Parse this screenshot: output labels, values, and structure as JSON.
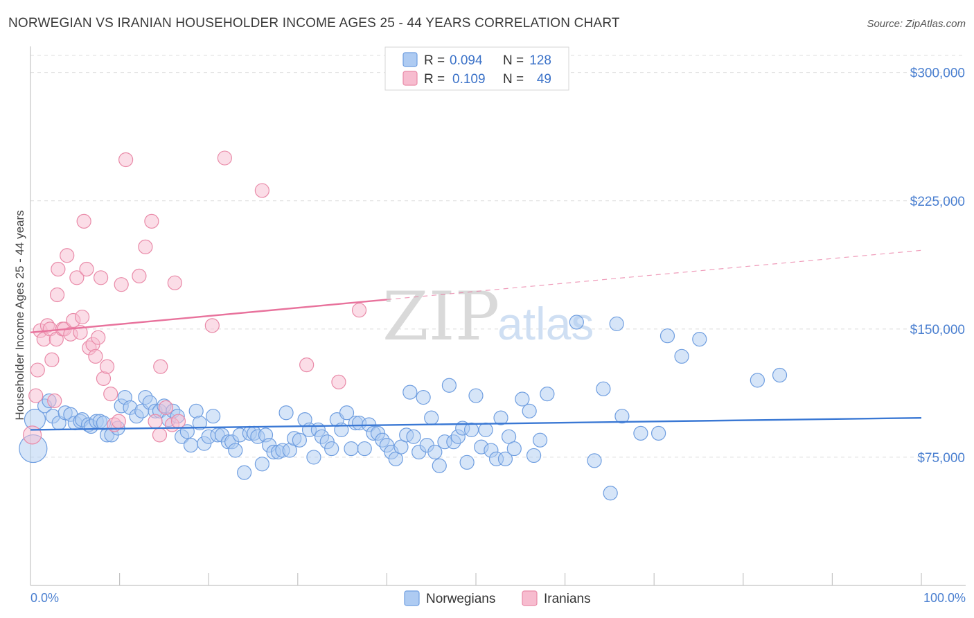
{
  "chart_data": {
    "type": "scatter",
    "title": "NORWEGIAN VS IRANIAN HOUSEHOLDER INCOME AGES 25 - 44 YEARS CORRELATION CHART",
    "source": "Source: ZipAtlas.com",
    "ylabel": "Householder Income Ages 25 - 44 years",
    "xlim": [
      0,
      100
    ],
    "ylim": [
      0,
      310000
    ],
    "x_tick_labels": {
      "min": "0.0%",
      "max": "100.0%"
    },
    "y_ticks": [
      {
        "value": 75000,
        "label": "$75,000"
      },
      {
        "value": 150000,
        "label": "$150,000"
      },
      {
        "value": 225000,
        "label": "$225,000"
      },
      {
        "value": 300000,
        "label": "$300,000"
      }
    ],
    "watermark": {
      "zip": "ZIP",
      "atlas": "atlas"
    },
    "legend": {
      "r_label": "R =",
      "n_label": "N =",
      "entries": [
        {
          "name": "Norwegians",
          "r": "0.094",
          "n": "128",
          "fill": "#aecbf2",
          "stroke": "#6f9ee0"
        },
        {
          "name": "Iranians",
          "r": "0.109",
          "n": "49",
          "fill": "#f7bccf",
          "stroke": "#e98aa8"
        }
      ]
    },
    "series": [
      {
        "name": "Norwegians",
        "color": "#3a78d4",
        "trend": {
          "x0": 0,
          "y0": 91000,
          "x1": 100,
          "y1": 98000,
          "solid_until": 100
        },
        "points": [
          [
            0.3,
            80000,
            2.0
          ],
          [
            0.5,
            97000,
            1.5
          ],
          [
            1.6,
            105000,
            1
          ],
          [
            2.1,
            108000,
            1
          ],
          [
            2.5,
            99000,
            1
          ],
          [
            3.2,
            95000,
            1
          ],
          [
            3.9,
            101000,
            1
          ],
          [
            4.5,
            100000,
            1
          ],
          [
            5,
            95000,
            1
          ],
          [
            5.6,
            96000,
            1
          ],
          [
            5.8,
            97000,
            1
          ],
          [
            6.5,
            94000,
            1
          ],
          [
            6.8,
            93000,
            1
          ],
          [
            7.4,
            96000,
            1
          ],
          [
            7.8,
            96000,
            1
          ],
          [
            8.2,
            95000,
            1
          ],
          [
            8.6,
            88000,
            1
          ],
          [
            9.1,
            88000,
            1
          ],
          [
            9.8,
            92000,
            1
          ],
          [
            10.2,
            105000,
            1
          ],
          [
            10.6,
            110000,
            1
          ],
          [
            11.2,
            104000,
            1
          ],
          [
            11.9,
            99000,
            1
          ],
          [
            12.5,
            102000,
            1
          ],
          [
            12.9,
            110000,
            1
          ],
          [
            13.4,
            107000,
            1
          ],
          [
            14,
            102000,
            1
          ],
          [
            14.5,
            102000,
            1
          ],
          [
            15,
            105000,
            1
          ],
          [
            15.5,
            97000,
            1
          ],
          [
            16,
            102000,
            1
          ],
          [
            16.5,
            99000,
            1
          ],
          [
            17,
            87000,
            1
          ],
          [
            17.6,
            90000,
            1
          ],
          [
            18,
            82000,
            1
          ],
          [
            18.6,
            102000,
            1
          ],
          [
            19,
            95000,
            1
          ],
          [
            19.5,
            83000,
            1
          ],
          [
            20,
            87000,
            1
          ],
          [
            20.5,
            99000,
            1
          ],
          [
            21,
            88000,
            1
          ],
          [
            21.5,
            88000,
            1
          ],
          [
            22.2,
            84000,
            1
          ],
          [
            22.6,
            84000,
            1
          ],
          [
            23,
            79000,
            1
          ],
          [
            23.5,
            88000,
            1
          ],
          [
            24,
            66000,
            1
          ],
          [
            24.6,
            89000,
            1
          ],
          [
            25.1,
            89000,
            1
          ],
          [
            25.5,
            87000,
            1
          ],
          [
            26,
            71000,
            1
          ],
          [
            26.4,
            88000,
            1
          ],
          [
            26.8,
            82000,
            1
          ],
          [
            27.3,
            78000,
            1
          ],
          [
            27.8,
            78000,
            1
          ],
          [
            28.3,
            79000,
            1
          ],
          [
            28.7,
            101000,
            1
          ],
          [
            29.1,
            79000,
            1
          ],
          [
            29.6,
            86000,
            1
          ],
          [
            30.2,
            85000,
            1
          ],
          [
            30.8,
            97000,
            1
          ],
          [
            31.3,
            91000,
            1
          ],
          [
            31.8,
            75000,
            1
          ],
          [
            32.3,
            91000,
            1
          ],
          [
            32.7,
            87000,
            1
          ],
          [
            33.3,
            84000,
            1
          ],
          [
            33.8,
            80000,
            1
          ],
          [
            34.4,
            97000,
            1
          ],
          [
            34.9,
            91000,
            1
          ],
          [
            35.5,
            101000,
            1
          ],
          [
            36,
            80000,
            1
          ],
          [
            36.5,
            95000,
            1
          ],
          [
            36.9,
            95000,
            1
          ],
          [
            37.5,
            80000,
            1
          ],
          [
            38,
            94000,
            1
          ],
          [
            38.5,
            89000,
            1
          ],
          [
            39,
            89000,
            1
          ],
          [
            39.5,
            85000,
            1
          ],
          [
            40,
            82000,
            1
          ],
          [
            40.5,
            78000,
            1
          ],
          [
            41,
            74000,
            1
          ],
          [
            41.6,
            81000,
            1
          ],
          [
            42.2,
            88000,
            1
          ],
          [
            42.6,
            113000,
            1
          ],
          [
            43,
            87000,
            1
          ],
          [
            43.6,
            78000,
            1
          ],
          [
            44.1,
            110000,
            1
          ],
          [
            44.5,
            82000,
            1
          ],
          [
            45,
            98000,
            1
          ],
          [
            45.4,
            78000,
            1
          ],
          [
            45.9,
            70000,
            1
          ],
          [
            46.5,
            84000,
            1
          ],
          [
            47,
            117000,
            1
          ],
          [
            47.5,
            84000,
            1
          ],
          [
            48,
            87000,
            1
          ],
          [
            48.5,
            92000,
            1
          ],
          [
            49,
            72000,
            1
          ],
          [
            49.5,
            91000,
            1
          ],
          [
            50,
            111000,
            1
          ],
          [
            50.6,
            81000,
            1
          ],
          [
            51.1,
            91000,
            1
          ],
          [
            51.7,
            79000,
            1
          ],
          [
            52.3,
            74000,
            1
          ],
          [
            52.8,
            98000,
            1
          ],
          [
            53.3,
            74000,
            1
          ],
          [
            53.7,
            87000,
            1
          ],
          [
            54.3,
            80000,
            1
          ],
          [
            55.2,
            109000,
            1
          ],
          [
            56,
            102000,
            1
          ],
          [
            56.5,
            76000,
            1
          ],
          [
            57.2,
            85000,
            1
          ],
          [
            58,
            112000,
            1
          ],
          [
            63.3,
            73000,
            1
          ],
          [
            64.3,
            115000,
            1
          ],
          [
            66.4,
            99000,
            1
          ],
          [
            68.5,
            89000,
            1
          ],
          [
            70.5,
            89000,
            1
          ],
          [
            65.8,
            153000,
            1
          ],
          [
            71.5,
            146000,
            1
          ],
          [
            75.1,
            144000,
            1
          ],
          [
            73.1,
            134000,
            1
          ],
          [
            65.1,
            54000,
            1
          ],
          [
            81.6,
            120000,
            1
          ],
          [
            84.1,
            123000,
            1
          ],
          [
            61.3,
            154000,
            1
          ]
        ]
      },
      {
        "name": "Iranians",
        "color": "#e8729c",
        "trend": {
          "x0": 0,
          "y0": 148000,
          "x1": 100,
          "y1": 196000,
          "solid_until": 40
        },
        "points": [
          [
            0.2,
            88000,
            1.3
          ],
          [
            0.6,
            111000,
            1
          ],
          [
            0.8,
            126000,
            1
          ],
          [
            1.1,
            149000,
            1
          ],
          [
            1.5,
            144000,
            1
          ],
          [
            1.9,
            152000,
            1
          ],
          [
            2.2,
            150000,
            1
          ],
          [
            2.4,
            132000,
            1
          ],
          [
            2.7,
            108000,
            1
          ],
          [
            2.9,
            144000,
            1
          ],
          [
            3,
            170000,
            1
          ],
          [
            3.1,
            185000,
            1
          ],
          [
            3.6,
            150000,
            1
          ],
          [
            3.8,
            150000,
            1
          ],
          [
            4.1,
            193000,
            1
          ],
          [
            4.5,
            147000,
            1
          ],
          [
            4.8,
            155000,
            1
          ],
          [
            5.2,
            180000,
            1
          ],
          [
            5.6,
            148000,
            1
          ],
          [
            5.8,
            157000,
            1
          ],
          [
            6,
            213000,
            1
          ],
          [
            6.3,
            185000,
            1
          ],
          [
            6.6,
            139000,
            1
          ],
          [
            7,
            141000,
            1
          ],
          [
            7.3,
            134000,
            1
          ],
          [
            7.6,
            145000,
            1
          ],
          [
            7.9,
            180000,
            1
          ],
          [
            8.2,
            121000,
            1
          ],
          [
            8.6,
            128000,
            1
          ],
          [
            9,
            112000,
            1
          ],
          [
            9.4,
            94000,
            1
          ],
          [
            9.9,
            96000,
            1
          ],
          [
            10.2,
            176000,
            1
          ],
          [
            10.7,
            249000,
            1
          ],
          [
            12.2,
            181000,
            1
          ],
          [
            12.9,
            198000,
            1
          ],
          [
            13.6,
            213000,
            1
          ],
          [
            14,
            96000,
            1
          ],
          [
            14.6,
            128000,
            1
          ],
          [
            15.2,
            104000,
            1
          ],
          [
            15.9,
            94000,
            1
          ],
          [
            16.2,
            177000,
            1
          ],
          [
            16.6,
            96000,
            1
          ],
          [
            20.4,
            152000,
            1
          ],
          [
            21.8,
            250000,
            1
          ],
          [
            14.5,
            88000,
            1
          ],
          [
            26,
            231000,
            1
          ],
          [
            31,
            129000,
            1
          ],
          [
            34.6,
            119000,
            1
          ],
          [
            36.9,
            161000,
            1
          ]
        ]
      }
    ]
  }
}
